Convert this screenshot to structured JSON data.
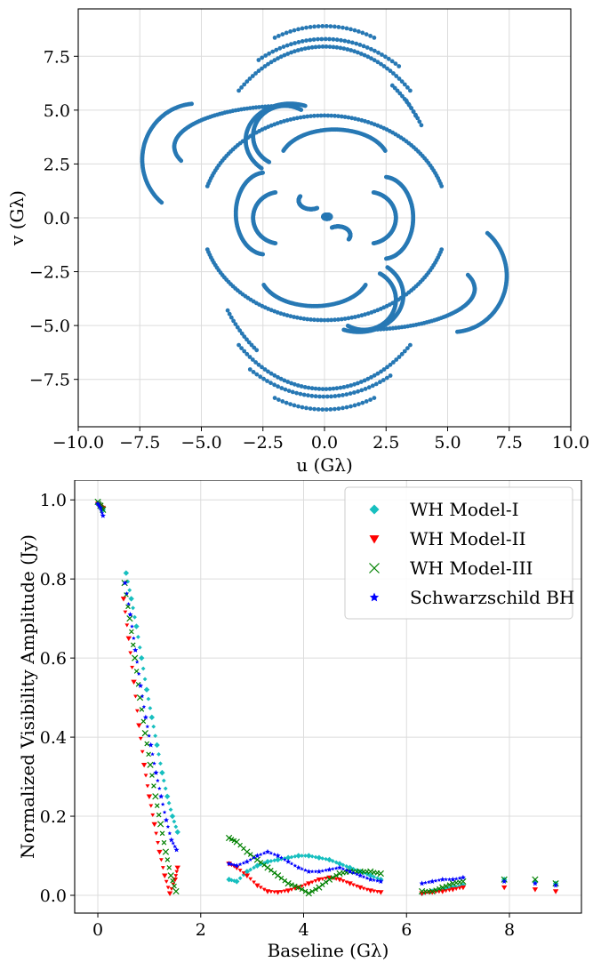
{
  "chart_data": [
    {
      "type": "scatter",
      "title": "",
      "xlabel": "u (Gλ)",
      "ylabel": "v (Gλ)",
      "xlim": [
        -10,
        10
      ],
      "ylim": [
        -9.7,
        9.7
      ],
      "xticks": [
        "−10.0",
        "−7.5",
        "−5.0",
        "−2.5",
        "0.0",
        "2.5",
        "5.0",
        "7.5",
        "10.0"
      ],
      "xtick_values": [
        -10,
        -7.5,
        -5,
        -2.5,
        0,
        2.5,
        5,
        7.5,
        10
      ],
      "yticks": [
        "−7.5",
        "−5.0",
        "−2.5",
        "0.0",
        "2.5",
        "5.0",
        "7.5"
      ],
      "ytick_values": [
        -7.5,
        -5,
        -2.5,
        0,
        2.5,
        5,
        7.5
      ],
      "grid": true,
      "point_color": "#2778b4",
      "tracks": [
        {
          "cx": 0,
          "cy": 0,
          "rx": 5.9,
          "ry": 8.9,
          "t0": 70,
          "t1": 110
        },
        {
          "cx": 0,
          "cy": 0,
          "rx": 5.7,
          "ry": 8.3,
          "t0": 58,
          "t1": 118
        },
        {
          "cx": 0,
          "cy": 0,
          "rx": 5.2,
          "ry": 7.95,
          "t0": 48,
          "t1": 132
        },
        {
          "cx": 0,
          "cy": 0,
          "rx": 4.7,
          "ry": 7.7,
          "t0": 38,
          "t1": 45
        },
        {
          "cx": 0,
          "cy": 0,
          "rx": 5.0,
          "ry": 4.75,
          "t0": 18,
          "t1": 162
        },
        {
          "cx": 0.4,
          "cy": 2.6,
          "rx": 2.2,
          "ry": 1.5,
          "t0": 20,
          "t1": 160
        },
        {
          "cx": -1.6,
          "cy": 3.8,
          "rx": 1.3,
          "ry": 1.4,
          "t0": 60,
          "t1": 240
        },
        {
          "cx": -1.4,
          "cy": 3.6,
          "rx": 1.8,
          "ry": 1.7,
          "t0": 70,
          "t1": 230
        },
        {
          "cx": -1.5,
          "cy": 3.3,
          "rx": 4.6,
          "ry": 1.9,
          "t0": 95,
          "t1": 200
        },
        {
          "cx": -2.4,
          "cy": 0.2,
          "rx": 1.2,
          "ry": 1.9,
          "t0": 95,
          "t1": 265
        },
        {
          "cx": -1.8,
          "cy": 0.0,
          "rx": 1.1,
          "ry": 1.2,
          "t0": 100,
          "t1": 260
        },
        {
          "cx": 2.4,
          "cy": 0.0,
          "rx": 1.2,
          "ry": 1.9,
          "t0": 275,
          "t1": 445
        },
        {
          "cx": 1.8,
          "cy": 0.0,
          "rx": 1.1,
          "ry": 1.2,
          "t0": 280,
          "t1": 440
        },
        {
          "cx": -0.55,
          "cy": 0.8,
          "rx": 0.5,
          "ry": 0.4,
          "t0": 150,
          "t1": 300
        },
        {
          "cx": 0.55,
          "cy": -0.8,
          "rx": 0.5,
          "ry": 0.4,
          "t0": 330,
          "t1": 480
        },
        {
          "cx": 0.1,
          "cy": 0.05,
          "rx": 0.15,
          "ry": 0.1,
          "t0": 0,
          "t1": 360
        },
        {
          "cx": 0,
          "cy": 0,
          "rx": 5.9,
          "ry": 8.9,
          "t0": 250,
          "t1": 290
        },
        {
          "cx": 0,
          "cy": 0,
          "rx": 5.7,
          "ry": 8.3,
          "t0": 238,
          "t1": 298
        },
        {
          "cx": 0,
          "cy": 0,
          "rx": 5.2,
          "ry": 7.95,
          "t0": 228,
          "t1": 312
        },
        {
          "cx": 0,
          "cy": 0,
          "rx": 5.0,
          "ry": 4.75,
          "t0": 198,
          "t1": 342
        },
        {
          "cx": -0.4,
          "cy": -2.6,
          "rx": 2.2,
          "ry": 1.5,
          "t0": 200,
          "t1": 340
        },
        {
          "cx": 1.6,
          "cy": -3.8,
          "rx": 1.3,
          "ry": 1.4,
          "t0": 240,
          "t1": 420
        },
        {
          "cx": 1.4,
          "cy": -3.6,
          "rx": 1.8,
          "ry": 1.7,
          "t0": 250,
          "t1": 410
        },
        {
          "cx": 1.5,
          "cy": -3.3,
          "rx": 4.6,
          "ry": 1.9,
          "t0": 275,
          "t1": 380
        },
        {
          "cx": -5.2,
          "cy": 2.7,
          "rx": 2.2,
          "ry": 2.6,
          "t0": 95,
          "t1": 230
        },
        {
          "cx": 5.2,
          "cy": -2.7,
          "rx": 2.2,
          "ry": 2.6,
          "t0": 275,
          "t1": 410
        },
        {
          "cx": 0,
          "cy": 0,
          "rx": 4.8,
          "ry": 7.5,
          "t0": 215,
          "t1": 235
        },
        {
          "cx": 0,
          "cy": 0,
          "rx": 4.8,
          "ry": 7.5,
          "t0": 35,
          "t1": 55
        }
      ]
    },
    {
      "type": "scatter",
      "title": "",
      "xlabel": "Baseline (Gλ)",
      "ylabel": "Normalized Visibility Amplitude (Jy)",
      "xlim": [
        -0.45,
        9.4
      ],
      "ylim": [
        -0.045,
        1.05
      ],
      "xticks": [
        "0",
        "2",
        "4",
        "6",
        "8"
      ],
      "xtick_values": [
        0,
        2,
        4,
        6,
        8
      ],
      "yticks": [
        "0.0",
        "0.2",
        "0.4",
        "0.6",
        "0.8",
        "1.0"
      ],
      "ytick_values": [
        0,
        0.2,
        0.4,
        0.6,
        0.8,
        1.0
      ],
      "grid": true,
      "legend_position": "top-right",
      "series": [
        {
          "name": "WH Model-I",
          "marker": "diamond",
          "color": "#17bfbf",
          "x": [
            0.0,
            0.05,
            0.1,
            0.55,
            0.65,
            0.75,
            0.85,
            0.95,
            1.05,
            1.15,
            1.25,
            1.35,
            1.45,
            1.55,
            2.55,
            2.7,
            2.9,
            3.1,
            3.3,
            3.5,
            3.7,
            3.9,
            4.1,
            4.3,
            4.5,
            4.7,
            4.9,
            5.1,
            5.3,
            5.5,
            6.3,
            6.5,
            6.7,
            6.9,
            7.1,
            7.9,
            8.5,
            8.9
          ],
          "y": [
            0.99,
            0.985,
            0.975,
            0.815,
            0.75,
            0.68,
            0.6,
            0.52,
            0.45,
            0.38,
            0.31,
            0.25,
            0.2,
            0.16,
            0.04,
            0.035,
            0.06,
            0.075,
            0.085,
            0.09,
            0.095,
            0.1,
            0.1,
            0.095,
            0.09,
            0.08,
            0.07,
            0.06,
            0.05,
            0.04,
            0.005,
            0.01,
            0.015,
            0.02,
            0.025,
            0.04,
            0.035,
            0.03
          ]
        },
        {
          "name": "WH Model-II",
          "marker": "triangle-down",
          "color": "#ff0000",
          "x": [
            0.0,
            0.05,
            0.1,
            0.5,
            0.6,
            0.7,
            0.8,
            0.9,
            1.0,
            1.1,
            1.2,
            1.3,
            1.4,
            1.5,
            1.55,
            2.55,
            2.7,
            2.9,
            3.1,
            3.3,
            3.5,
            3.7,
            3.9,
            4.1,
            4.3,
            4.5,
            4.7,
            4.9,
            5.1,
            5.3,
            5.5,
            6.3,
            6.5,
            6.7,
            6.9,
            7.1,
            7.9,
            8.5,
            8.9
          ],
          "y": [
            0.99,
            0.985,
            0.98,
            0.75,
            0.65,
            0.54,
            0.43,
            0.33,
            0.25,
            0.18,
            0.11,
            0.05,
            0.005,
            0.04,
            0.07,
            0.08,
            0.07,
            0.05,
            0.025,
            0.01,
            0.008,
            0.012,
            0.02,
            0.03,
            0.04,
            0.045,
            0.04,
            0.03,
            0.02,
            0.012,
            0.008,
            0.005,
            0.008,
            0.01,
            0.015,
            0.02,
            0.02,
            0.015,
            0.01
          ]
        },
        {
          "name": "WH Model-III",
          "marker": "x",
          "color": "#008000",
          "x": [
            0.0,
            0.05,
            0.1,
            0.52,
            0.62,
            0.72,
            0.82,
            0.92,
            1.02,
            1.12,
            1.22,
            1.32,
            1.42,
            1.52,
            2.55,
            2.7,
            2.9,
            3.1,
            3.3,
            3.5,
            3.7,
            3.9,
            4.1,
            4.3,
            4.5,
            4.7,
            4.9,
            5.1,
            5.3,
            5.5,
            6.3,
            6.5,
            6.7,
            6.9,
            7.1,
            7.9,
            8.5,
            8.9
          ],
          "y": [
            0.995,
            0.985,
            0.975,
            0.79,
            0.7,
            0.6,
            0.5,
            0.41,
            0.33,
            0.25,
            0.18,
            0.11,
            0.05,
            0.01,
            0.145,
            0.135,
            0.11,
            0.09,
            0.07,
            0.05,
            0.03,
            0.02,
            0.005,
            0.02,
            0.04,
            0.055,
            0.06,
            0.06,
            0.06,
            0.055,
            0.01,
            0.01,
            0.02,
            0.03,
            0.035,
            0.04,
            0.04,
            0.03
          ]
        },
        {
          "name": "Schwarzschild BH",
          "marker": "star",
          "color": "#0000ff",
          "x": [
            0.0,
            0.05,
            0.1,
            0.53,
            0.63,
            0.73,
            0.83,
            0.93,
            1.03,
            1.13,
            1.23,
            1.33,
            1.43,
            1.53,
            2.55,
            2.7,
            2.9,
            3.1,
            3.3,
            3.5,
            3.7,
            3.9,
            4.1,
            4.3,
            4.5,
            4.7,
            4.9,
            5.1,
            5.3,
            5.5,
            6.3,
            6.5,
            6.7,
            6.9,
            7.1,
            7.9,
            8.5,
            8.9
          ],
          "y": [
            0.99,
            0.98,
            0.96,
            0.79,
            0.71,
            0.62,
            0.53,
            0.45,
            0.38,
            0.31,
            0.25,
            0.19,
            0.14,
            0.115,
            0.08,
            0.075,
            0.085,
            0.1,
            0.11,
            0.1,
            0.085,
            0.07,
            0.06,
            0.06,
            0.065,
            0.07,
            0.06,
            0.05,
            0.04,
            0.035,
            0.03,
            0.035,
            0.04,
            0.04,
            0.045,
            0.035,
            0.03,
            0.025
          ]
        }
      ]
    }
  ]
}
